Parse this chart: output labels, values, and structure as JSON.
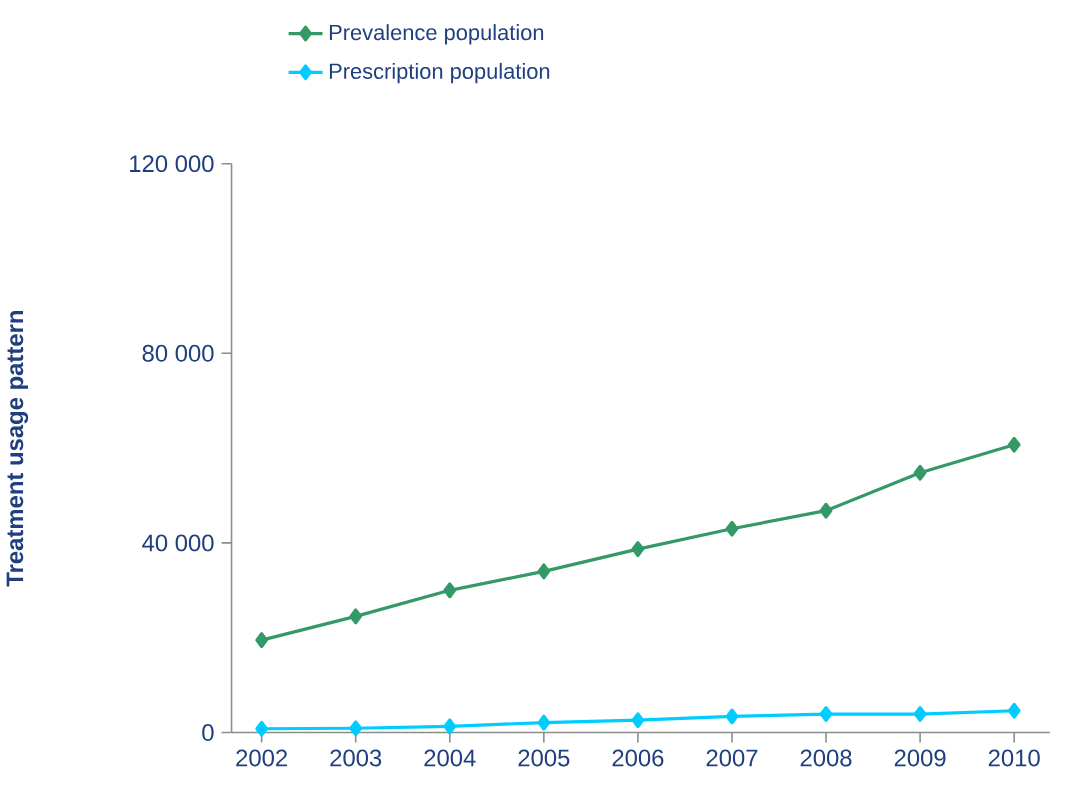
{
  "chart_data": {
    "type": "line",
    "ylabel": "Treatment usage pattern",
    "categories": [
      "2002",
      "2003",
      "2004",
      "2005",
      "2006",
      "2007",
      "2008",
      "2009",
      "2010"
    ],
    "series": [
      {
        "name": "Prevalence population",
        "color": "#339966",
        "values": [
          19500,
          24500,
          30000,
          34000,
          38700,
          43000,
          46800,
          54800,
          60700
        ]
      },
      {
        "name": "Prescription population",
        "color": "#00ccff",
        "values": [
          800,
          900,
          1300,
          2100,
          2600,
          3400,
          3900,
          3900,
          4600
        ]
      }
    ],
    "ylim": [
      0,
      120000
    ],
    "yticks": [
      0,
      {
        "value": 40000,
        "label": "40 000"
      },
      {
        "value": 80000,
        "label": "80 000"
      },
      {
        "value": 120000,
        "label": "120 000"
      }
    ],
    "grid": false,
    "legend": "top left",
    "marker": "diamond",
    "line_style": "solid"
  }
}
